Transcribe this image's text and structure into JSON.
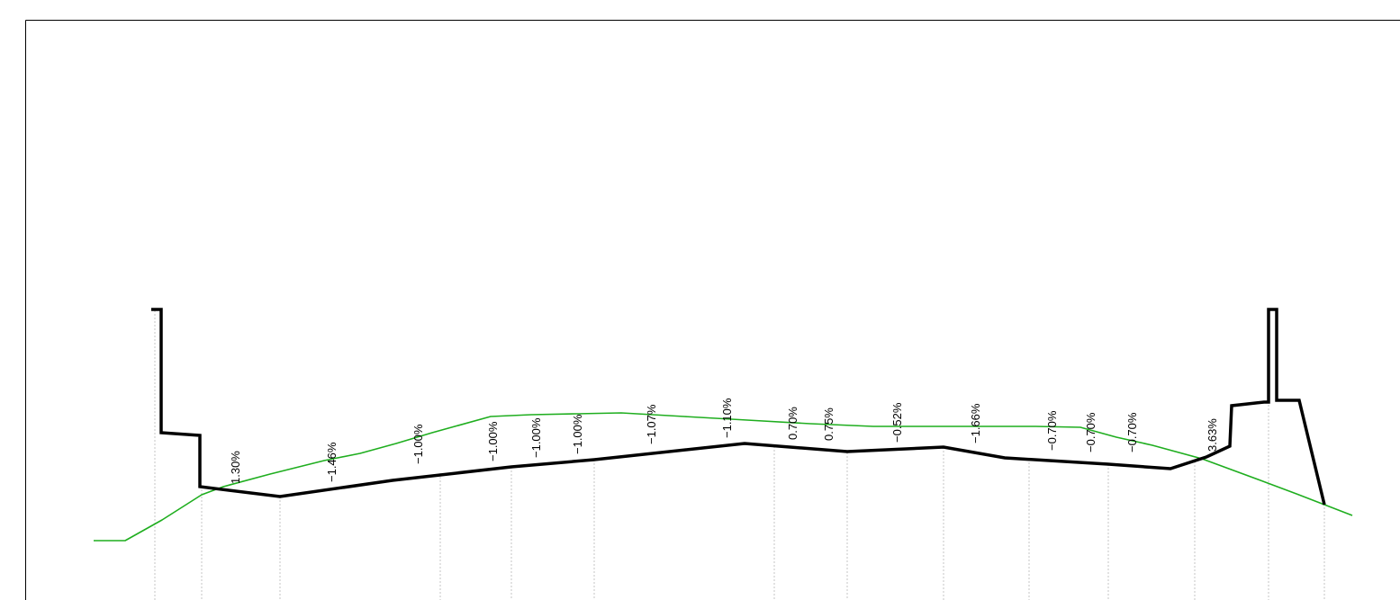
{
  "drawing": {
    "type": "cross-section profile",
    "colors": {
      "background": "#ffffff",
      "frame": "#000000",
      "section_line": "#000000",
      "ground_line": "#1fae1f",
      "guide_lines": "#b8b8b8"
    },
    "slope_labels": [
      "1.30%",
      "−1.46%",
      "−1.00%",
      "−1.00%",
      "−1.00%",
      "−1.00%",
      "−1.07%",
      "−1.10%",
      "0.70%",
      "0.75%",
      "−0.52%",
      "−1.66%",
      "−0.70%",
      "−0.70%",
      "−0.70%",
      "3.63%"
    ]
  }
}
